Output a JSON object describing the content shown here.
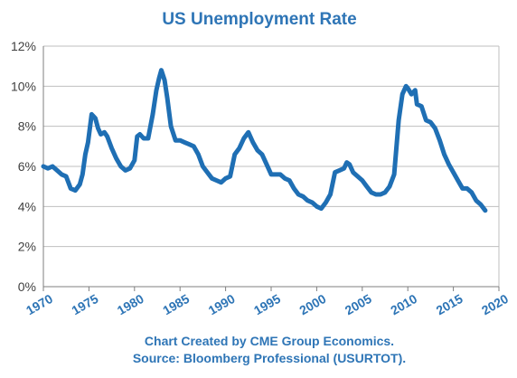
{
  "chart_data": {
    "type": "line",
    "title": "US Unemployment Rate",
    "xlabel": "",
    "ylabel": "",
    "xlim": [
      1970,
      2020
    ],
    "ylim": [
      0,
      12
    ],
    "grid": true,
    "legend": "none",
    "x_tick_labels": [
      "1970",
      "1975",
      "1980",
      "1985",
      "1990",
      "1995",
      "2000",
      "2005",
      "2010",
      "2015",
      "2020"
    ],
    "y_tick_labels": [
      "0%",
      "2%",
      "4%",
      "6%",
      "8%",
      "10%",
      "12%"
    ],
    "series": [
      {
        "color": "#1f6fb4",
        "x": [
          1970.0,
          1970.5,
          1971.0,
          1971.5,
          1972.0,
          1972.5,
          1973.0,
          1973.5,
          1974.0,
          1974.3,
          1974.6,
          1974.9,
          1975.3,
          1975.7,
          1976.0,
          1976.3,
          1976.7,
          1977.0,
          1977.5,
          1978.0,
          1978.5,
          1979.0,
          1979.5,
          1980.0,
          1980.3,
          1980.6,
          1981.0,
          1981.5,
          1982.0,
          1982.4,
          1982.7,
          1982.95,
          1983.3,
          1983.6,
          1984.0,
          1984.5,
          1985.0,
          1985.5,
          1986.0,
          1986.5,
          1987.0,
          1987.5,
          1988.0,
          1988.5,
          1989.0,
          1989.5,
          1990.0,
          1990.5,
          1991.0,
          1991.5,
          1992.0,
          1992.5,
          1993.0,
          1993.5,
          1994.0,
          1994.5,
          1995.0,
          1995.5,
          1996.0,
          1996.5,
          1997.0,
          1997.5,
          1998.0,
          1998.5,
          1999.0,
          1999.5,
          2000.0,
          2000.5,
          2001.0,
          2001.5,
          2002.0,
          2002.5,
          2003.0,
          2003.3,
          2003.6,
          2004.0,
          2004.5,
          2005.0,
          2005.5,
          2006.0,
          2006.5,
          2007.0,
          2007.5,
          2008.0,
          2008.5,
          2009.0,
          2009.4,
          2009.8,
          2010.0,
          2010.4,
          2010.8,
          2011.0,
          2011.5,
          2012.0,
          2012.5,
          2013.0,
          2013.5,
          2014.0,
          2014.5,
          2015.0,
          2015.5,
          2016.0,
          2016.5,
          2017.0,
          2017.5,
          2018.0,
          2018.5
        ],
        "y": [
          6.0,
          5.9,
          6.0,
          5.8,
          5.6,
          5.5,
          4.9,
          4.8,
          5.1,
          5.6,
          6.6,
          7.2,
          8.6,
          8.4,
          7.9,
          7.6,
          7.7,
          7.5,
          6.9,
          6.4,
          6.0,
          5.8,
          5.9,
          6.3,
          7.5,
          7.6,
          7.4,
          7.4,
          8.6,
          9.8,
          10.4,
          10.8,
          10.3,
          9.4,
          8.0,
          7.3,
          7.3,
          7.2,
          7.1,
          7.0,
          6.6,
          6.0,
          5.7,
          5.4,
          5.3,
          5.2,
          5.4,
          5.5,
          6.6,
          6.9,
          7.4,
          7.7,
          7.2,
          6.8,
          6.6,
          6.1,
          5.6,
          5.6,
          5.6,
          5.4,
          5.3,
          4.9,
          4.6,
          4.5,
          4.3,
          4.2,
          4.0,
          3.9,
          4.2,
          4.6,
          5.7,
          5.8,
          5.9,
          6.2,
          6.1,
          5.7,
          5.5,
          5.3,
          5.0,
          4.7,
          4.6,
          4.6,
          4.7,
          5.0,
          5.6,
          8.3,
          9.6,
          10.0,
          9.9,
          9.6,
          9.8,
          9.1,
          9.0,
          8.3,
          8.2,
          7.9,
          7.3,
          6.6,
          6.1,
          5.7,
          5.3,
          4.9,
          4.9,
          4.7,
          4.3,
          4.1,
          3.8
        ]
      }
    ],
    "notes": [
      "Chart Created by CME Group Economics.",
      "Source: Bloomberg Professional (USURTOT)."
    ],
    "colors": {
      "title": "#2e75b6",
      "line": "#1f6fb4",
      "grid": "#bfbfbf",
      "axis": "#7f7f7f",
      "tick_text": "#404040",
      "x_tick_text": "#2e75b6",
      "note_text": "#2e75b6"
    }
  }
}
